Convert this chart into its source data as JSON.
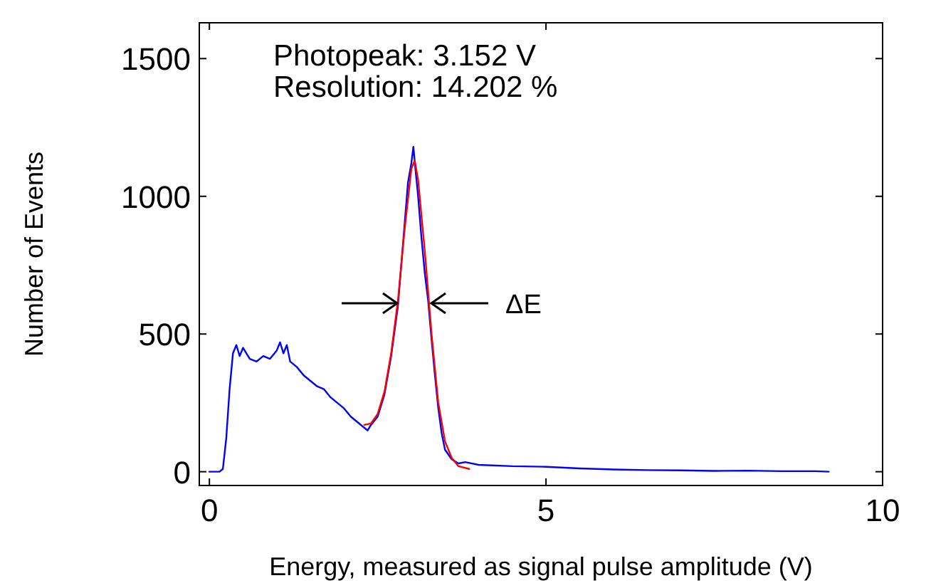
{
  "chart_data": {
    "type": "line",
    "xlabel": "Energy, measured as signal pulse amplitude (V)",
    "ylabel": "Number of Events",
    "xlim": [
      -0.15,
      10
    ],
    "ylim": [
      -50,
      1630
    ],
    "xticks": [
      0,
      5,
      10
    ],
    "yticks": [
      0,
      500,
      1000,
      1500
    ],
    "grid": false,
    "line_style": "solid",
    "series": [
      {
        "color": "#0000ff",
        "x": [
          0,
          0.15,
          0.2,
          0.25,
          0.3,
          0.35,
          0.4,
          0.45,
          0.5,
          0.55,
          0.6,
          0.7,
          0.8,
          0.9,
          1.0,
          1.05,
          1.1,
          1.15,
          1.2,
          1.3,
          1.4,
          1.5,
          1.6,
          1.7,
          1.8,
          1.9,
          2.0,
          2.1,
          2.2,
          2.3,
          2.35,
          2.4,
          2.5,
          2.6,
          2.7,
          2.8,
          2.85,
          2.9,
          2.95,
          3.0,
          3.03,
          3.06,
          3.1,
          3.15,
          3.2,
          3.25,
          3.3,
          3.35,
          3.4,
          3.45,
          3.5,
          3.6,
          3.7,
          3.8,
          4.0,
          4.5,
          5.0,
          5.5,
          6.0,
          6.5,
          7.0,
          7.5,
          8.0,
          8.5,
          9.0,
          9.2
        ],
        "values": [
          0,
          0,
          10,
          120,
          300,
          430,
          460,
          420,
          450,
          430,
          410,
          400,
          420,
          410,
          440,
          470,
          430,
          460,
          400,
          380,
          350,
          330,
          310,
          300,
          270,
          250,
          230,
          200,
          180,
          160,
          150,
          170,
          200,
          280,
          420,
          600,
          750,
          900,
          1050,
          1120,
          1180,
          1100,
          1000,
          850,
          720,
          620,
          480,
          350,
          230,
          140,
          80,
          45,
          30,
          35,
          25,
          20,
          18,
          12,
          8,
          6,
          5,
          3,
          4,
          2,
          2,
          0
        ]
      },
      {
        "color": "#ff0000",
        "x": [
          2.3,
          2.4,
          2.5,
          2.6,
          2.7,
          2.8,
          2.9,
          3.0,
          3.05,
          3.1,
          3.2,
          3.3,
          3.4,
          3.5,
          3.6,
          3.7,
          3.86
        ],
        "values": [
          170,
          175,
          210,
          290,
          430,
          620,
          880,
          1100,
          1130,
          1060,
          800,
          500,
          250,
          110,
          50,
          20,
          10
        ]
      }
    ],
    "annotations": [
      "Photopeak: 3.152 V",
      "Resolution: 14.202 %",
      "ΔE"
    ]
  }
}
